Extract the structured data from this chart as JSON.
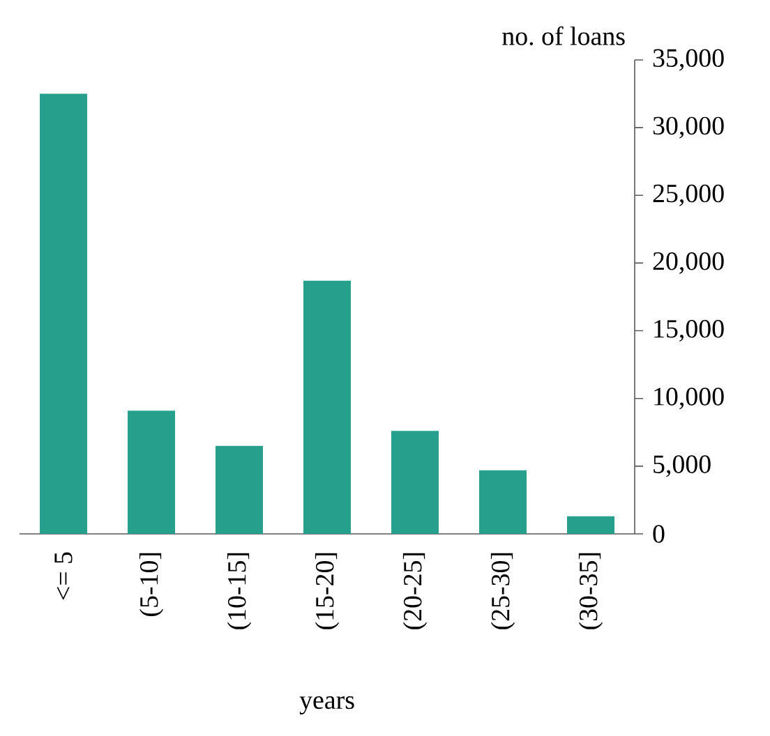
{
  "chart_data": {
    "type": "bar",
    "xlabel": "years",
    "ylabel": "no. of loans",
    "categories": [
      "<= 5",
      "(5-10]",
      "(10-15]",
      "(15-20]",
      "(20-25]",
      "(25-30]",
      "(30-35]"
    ],
    "values": [
      32500,
      9100,
      6500,
      18700,
      7600,
      4700,
      1300
    ],
    "color": "#26a08c",
    "ylim": [
      0,
      35000
    ],
    "yticks": [
      0,
      {
        "value": 5000,
        "label": "5,000"
      },
      {
        "value": 10000,
        "label": "10,000"
      },
      {
        "value": 15000,
        "label": "15,000"
      },
      {
        "value": 20000,
        "label": "20,000"
      },
      {
        "value": 25000,
        "label": "25,000"
      },
      {
        "value": 30000,
        "label": "30,000"
      },
      {
        "value": 35000,
        "label": "35,000"
      }
    ],
    "grid": false
  }
}
